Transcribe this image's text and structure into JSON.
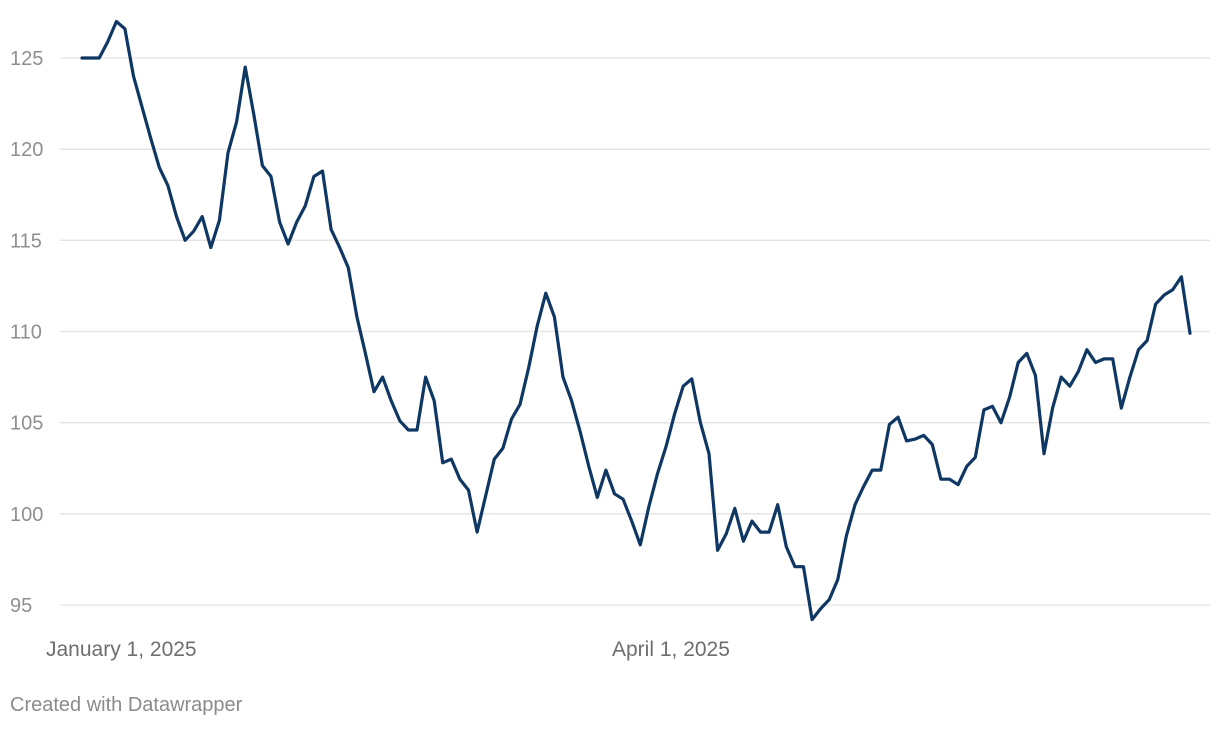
{
  "chart_data": {
    "type": "line",
    "ylim": [
      94,
      127
    ],
    "yticks": [
      95,
      100,
      105,
      110,
      115,
      120,
      125
    ],
    "xtick_labels": [
      "January 1, 2025",
      "April 1, 2025"
    ],
    "grid": true,
    "series": [
      {
        "color": "#0f3764",
        "values": [
          125.0,
          125.0,
          125.0,
          125.9,
          127.0,
          126.6,
          124.0,
          122.3,
          120.6,
          119.0,
          118.0,
          116.3,
          115.0,
          115.5,
          116.3,
          114.6,
          116.1,
          119.8,
          121.5,
          124.5,
          121.9,
          119.1,
          118.5,
          116.0,
          114.8,
          116.0,
          116.9,
          118.5,
          118.8,
          115.6,
          114.6,
          113.5,
          110.8,
          108.8,
          106.7,
          107.5,
          106.2,
          105.1,
          104.6,
          104.6,
          107.5,
          106.2,
          102.8,
          103.0,
          101.9,
          101.3,
          99.0,
          101.0,
          103.0,
          103.6,
          105.2,
          106.0,
          108.0,
          110.3,
          112.1,
          110.8,
          107.5,
          106.2,
          104.5,
          102.6,
          100.9,
          102.4,
          101.1,
          100.8,
          99.6,
          98.3,
          100.4,
          102.2,
          103.7,
          105.5,
          107.0,
          107.4,
          105.0,
          103.3,
          98.0,
          98.9,
          100.3,
          98.5,
          99.6,
          99.0,
          99.0,
          100.5,
          98.2,
          97.1,
          97.1,
          94.2,
          94.8,
          95.3,
          96.4,
          98.8,
          100.5,
          101.5,
          102.4,
          102.4,
          104.9,
          105.3,
          104.0,
          104.1,
          104.3,
          103.8,
          101.9,
          101.9,
          101.6,
          102.6,
          103.1,
          105.7,
          105.9,
          105.0,
          106.4,
          108.3,
          108.8,
          107.6,
          103.3,
          105.8,
          107.5,
          107.0,
          107.8,
          109.0,
          108.3,
          108.5,
          108.5,
          105.8,
          107.5,
          109.0,
          109.5,
          111.5,
          112.0,
          112.3,
          113.0,
          109.9
        ]
      }
    ]
  },
  "footer": {
    "credit": "Created with Datawrapper"
  }
}
